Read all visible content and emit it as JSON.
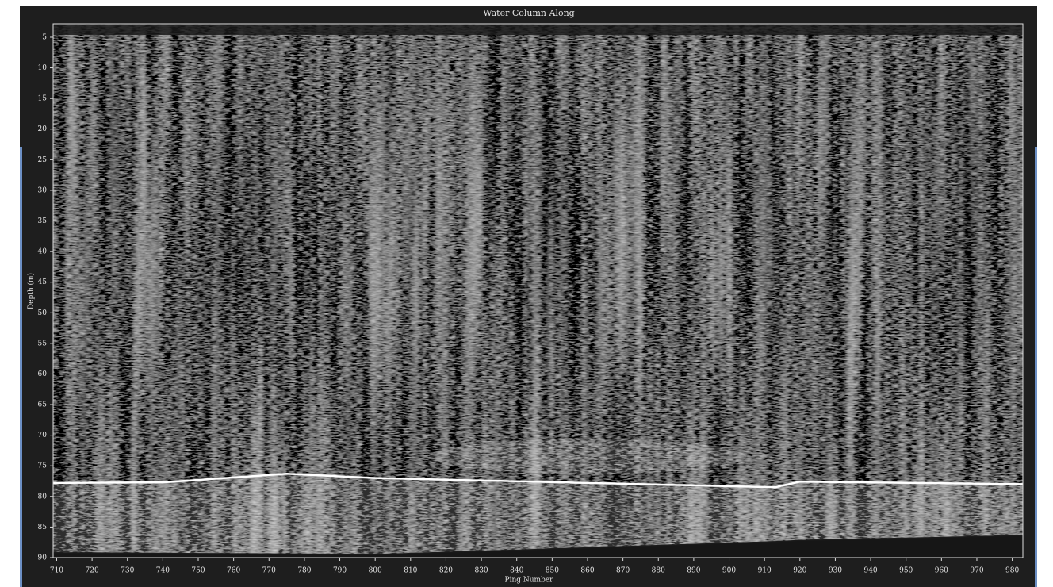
{
  "chart_data": {
    "type": "echogram",
    "title": "Water Column Along",
    "x_label": "Ping Number",
    "y_label": "Depth (m)",
    "xlim": [
      709,
      983
    ],
    "ylim": [
      2.8,
      90
    ],
    "y_inverted": true,
    "xticks": [
      710,
      720,
      730,
      740,
      750,
      760,
      770,
      780,
      790,
      800,
      810,
      820,
      830,
      840,
      850,
      860,
      870,
      880,
      890,
      900,
      910,
      920,
      930,
      940,
      950,
      960,
      970,
      980
    ],
    "yticks": [
      5,
      10,
      15,
      20,
      25,
      30,
      35,
      40,
      45,
      50,
      55,
      60,
      65,
      70,
      75,
      80,
      85,
      90
    ],
    "x": [
      709,
      740,
      775,
      800,
      913,
      920,
      983
    ],
    "series": [
      {
        "color": "#ffffff",
        "values": [
          77.8,
          77.7,
          76.3,
          77.0,
          78.5,
          77.6,
          78.0
        ]
      },
      {
        "color": "#1a1a1a",
        "values": [
          89.2,
          89.3,
          89.4,
          89.5,
          87.4,
          87.2,
          86.4
        ]
      }
    ]
  }
}
